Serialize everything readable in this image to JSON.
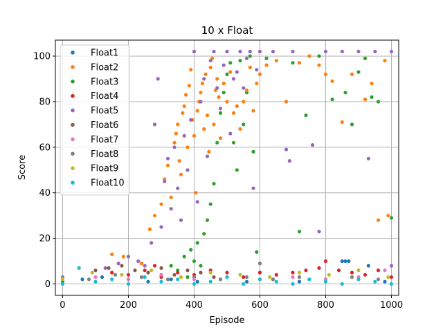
{
  "chart_data": {
    "type": "scatter",
    "title": "10 x Float",
    "xlabel": "Episode",
    "ylabel": "Score",
    "xlim": [
      -22,
      1022
    ],
    "ylim": [
      -5,
      107
    ],
    "xticks": [
      0,
      200,
      400,
      600,
      800,
      1000
    ],
    "yticks": [
      0,
      20,
      40,
      60,
      80,
      100
    ],
    "grid": true,
    "legend_position": "upper-left",
    "draw_order": [
      "Float3",
      "Float2",
      "Float5",
      "Float4",
      "Float6",
      "Float1",
      "Float8",
      "Float7",
      "Float9",
      "Float10"
    ],
    "series": [
      {
        "name": "Float1",
        "color": "#1f77b4",
        "points": [
          [
            0,
            1
          ],
          [
            60,
            2
          ],
          [
            120,
            3
          ],
          [
            200,
            2
          ],
          [
            260,
            1
          ],
          [
            330,
            2
          ],
          [
            410,
            1
          ],
          [
            480,
            2
          ],
          [
            560,
            1
          ],
          [
            640,
            2
          ],
          [
            720,
            1
          ],
          [
            800,
            2
          ],
          [
            850,
            10
          ],
          [
            860,
            10
          ],
          [
            870,
            10
          ],
          [
            930,
            8
          ],
          [
            980,
            1
          ]
        ]
      },
      {
        "name": "Float2",
        "color": "#ff7f0e",
        "points": [
          [
            150,
            13
          ],
          [
            185,
            12
          ],
          [
            240,
            9
          ],
          [
            265,
            24
          ],
          [
            280,
            30
          ],
          [
            300,
            35
          ],
          [
            310,
            46
          ],
          [
            320,
            52
          ],
          [
            330,
            38
          ],
          [
            340,
            62
          ],
          [
            345,
            66
          ],
          [
            350,
            70
          ],
          [
            355,
            54
          ],
          [
            360,
            48
          ],
          [
            365,
            75
          ],
          [
            370,
            78
          ],
          [
            375,
            83
          ],
          [
            380,
            60
          ],
          [
            385,
            87
          ],
          [
            390,
            94
          ],
          [
            395,
            72
          ],
          [
            400,
            65
          ],
          [
            405,
            40
          ],
          [
            410,
            76
          ],
          [
            415,
            80
          ],
          [
            420,
            84
          ],
          [
            425,
            88
          ],
          [
            430,
            68
          ],
          [
            435,
            92
          ],
          [
            440,
            74
          ],
          [
            445,
            58
          ],
          [
            450,
            95
          ],
          [
            455,
            99
          ],
          [
            460,
            70
          ],
          [
            465,
            85
          ],
          [
            470,
            90
          ],
          [
            475,
            82
          ],
          [
            480,
            64
          ],
          [
            490,
            88
          ],
          [
            500,
            80
          ],
          [
            510,
            93
          ],
          [
            520,
            75
          ],
          [
            530,
            78
          ],
          [
            540,
            68
          ],
          [
            550,
            80
          ],
          [
            560,
            85
          ],
          [
            570,
            95
          ],
          [
            580,
            76
          ],
          [
            590,
            88
          ],
          [
            600,
            92
          ],
          [
            620,
            96
          ],
          [
            650,
            98
          ],
          [
            680,
            80
          ],
          [
            720,
            97
          ],
          [
            750,
            100
          ],
          [
            780,
            96
          ],
          [
            800,
            92
          ],
          [
            820,
            89
          ],
          [
            850,
            71
          ],
          [
            880,
            92
          ],
          [
            920,
            81
          ],
          [
            940,
            88
          ],
          [
            960,
            28
          ],
          [
            980,
            98
          ],
          [
            990,
            30
          ]
        ]
      },
      {
        "name": "Float3",
        "color": "#2ca02c",
        "points": [
          [
            300,
            4
          ],
          [
            330,
            8
          ],
          [
            350,
            6
          ],
          [
            370,
            12
          ],
          [
            380,
            3
          ],
          [
            390,
            15
          ],
          [
            400,
            10
          ],
          [
            410,
            18
          ],
          [
            420,
            8
          ],
          [
            430,
            22
          ],
          [
            440,
            28
          ],
          [
            450,
            35
          ],
          [
            460,
            44
          ],
          [
            470,
            62
          ],
          [
            480,
            75
          ],
          [
            490,
            84
          ],
          [
            500,
            92
          ],
          [
            510,
            97
          ],
          [
            520,
            62
          ],
          [
            530,
            50
          ],
          [
            540,
            98
          ],
          [
            550,
            70
          ],
          [
            560,
            84
          ],
          [
            570,
            100
          ],
          [
            580,
            58
          ],
          [
            590,
            14
          ],
          [
            600,
            5
          ],
          [
            620,
            99
          ],
          [
            700,
            97
          ],
          [
            720,
            23
          ],
          [
            740,
            74
          ],
          [
            780,
            100
          ],
          [
            820,
            81
          ],
          [
            860,
            84
          ],
          [
            880,
            70
          ],
          [
            900,
            93
          ],
          [
            920,
            99
          ],
          [
            940,
            82
          ],
          [
            960,
            80
          ],
          [
            1000,
            29
          ]
        ]
      },
      {
        "name": "Float4",
        "color": "#d62728",
        "points": [
          [
            150,
            5
          ],
          [
            200,
            4
          ],
          [
            250,
            6
          ],
          [
            280,
            8
          ],
          [
            300,
            3
          ],
          [
            350,
            5
          ],
          [
            400,
            4
          ],
          [
            450,
            6
          ],
          [
            500,
            5
          ],
          [
            550,
            3
          ],
          [
            600,
            5
          ],
          [
            650,
            4
          ],
          [
            700,
            5
          ],
          [
            740,
            6
          ],
          [
            780,
            7
          ],
          [
            800,
            10
          ],
          [
            840,
            6
          ],
          [
            880,
            5
          ],
          [
            920,
            4
          ],
          [
            960,
            6
          ],
          [
            1000,
            3
          ]
        ]
      },
      {
        "name": "Float5",
        "color": "#9467bd",
        "points": [
          [
            130,
            7
          ],
          [
            170,
            9
          ],
          [
            200,
            12
          ],
          [
            230,
            10
          ],
          [
            250,
            8
          ],
          [
            270,
            18
          ],
          [
            280,
            70
          ],
          [
            290,
            90
          ],
          [
            300,
            25
          ],
          [
            310,
            45
          ],
          [
            320,
            55
          ],
          [
            330,
            33
          ],
          [
            340,
            60
          ],
          [
            350,
            42
          ],
          [
            360,
            28
          ],
          [
            370,
            65
          ],
          [
            380,
            50
          ],
          [
            390,
            72
          ],
          [
            400,
            102
          ],
          [
            410,
            36
          ],
          [
            420,
            80
          ],
          [
            430,
            90
          ],
          [
            440,
            56
          ],
          [
            450,
            98
          ],
          [
            460,
            102
          ],
          [
            470,
            86
          ],
          [
            480,
            77
          ],
          [
            490,
            96
          ],
          [
            500,
            102
          ],
          [
            510,
            66
          ],
          [
            520,
            90
          ],
          [
            530,
            93
          ],
          [
            540,
            102
          ],
          [
            550,
            86
          ],
          [
            560,
            99
          ],
          [
            570,
            102
          ],
          [
            580,
            42
          ],
          [
            590,
            94
          ],
          [
            600,
            102
          ],
          [
            640,
            102
          ],
          [
            680,
            59
          ],
          [
            690,
            54
          ],
          [
            700,
            102
          ],
          [
            760,
            61
          ],
          [
            780,
            23
          ],
          [
            800,
            102
          ],
          [
            850,
            102
          ],
          [
            900,
            102
          ],
          [
            930,
            55
          ],
          [
            950,
            102
          ],
          [
            1000,
            102
          ],
          [
            1000,
            8
          ]
        ]
      },
      {
        "name": "Float6",
        "color": "#8c564b",
        "points": [
          [
            100,
            6
          ],
          [
            140,
            7
          ],
          [
            180,
            8
          ],
          [
            220,
            6
          ],
          [
            260,
            5
          ],
          [
            300,
            7
          ],
          [
            340,
            4
          ],
          [
            380,
            6
          ],
          [
            420,
            5
          ],
          [
            460,
            3
          ]
        ]
      },
      {
        "name": "Float7",
        "color": "#e377c2",
        "points": [
          [
            0,
            2
          ],
          [
            100,
            3
          ],
          [
            200,
            2
          ],
          [
            300,
            4
          ],
          [
            400,
            2
          ],
          [
            500,
            3
          ],
          [
            600,
            2
          ],
          [
            700,
            3
          ],
          [
            800,
            2
          ],
          [
            900,
            3
          ],
          [
            980,
            6
          ]
        ]
      },
      {
        "name": "Float8",
        "color": "#7f7f7f",
        "points": [
          [
            0,
            3
          ],
          [
            80,
            2
          ],
          [
            160,
            4
          ],
          [
            240,
            3
          ],
          [
            320,
            2
          ],
          [
            400,
            3
          ],
          [
            480,
            2
          ],
          [
            560,
            3
          ],
          [
            600,
            9
          ],
          [
            640,
            2
          ],
          [
            720,
            3
          ],
          [
            800,
            2
          ],
          [
            880,
            3
          ],
          [
            960,
            2
          ]
        ]
      },
      {
        "name": "Float9",
        "color": "#bcbd22",
        "points": [
          [
            0,
            2
          ],
          [
            90,
            5
          ],
          [
            180,
            4
          ],
          [
            270,
            6
          ],
          [
            360,
            3
          ],
          [
            450,
            5
          ],
          [
            540,
            4
          ],
          [
            630,
            3
          ],
          [
            720,
            5
          ],
          [
            810,
            4
          ],
          [
            900,
            6
          ],
          [
            990,
            3
          ]
        ]
      },
      {
        "name": "Float10",
        "color": "#17becf",
        "points": [
          [
            0,
            0
          ],
          [
            50,
            7
          ],
          [
            100,
            1
          ],
          [
            150,
            2
          ],
          [
            200,
            0
          ],
          [
            250,
            3
          ],
          [
            300,
            1
          ],
          [
            350,
            2
          ],
          [
            400,
            0
          ],
          [
            450,
            1
          ],
          [
            500,
            3
          ],
          [
            550,
            0
          ],
          [
            600,
            2
          ],
          [
            650,
            1
          ],
          [
            700,
            0
          ],
          [
            750,
            2
          ],
          [
            800,
            1
          ],
          [
            850,
            0
          ],
          [
            900,
            2
          ],
          [
            950,
            1
          ],
          [
            1000,
            0
          ]
        ]
      }
    ]
  }
}
